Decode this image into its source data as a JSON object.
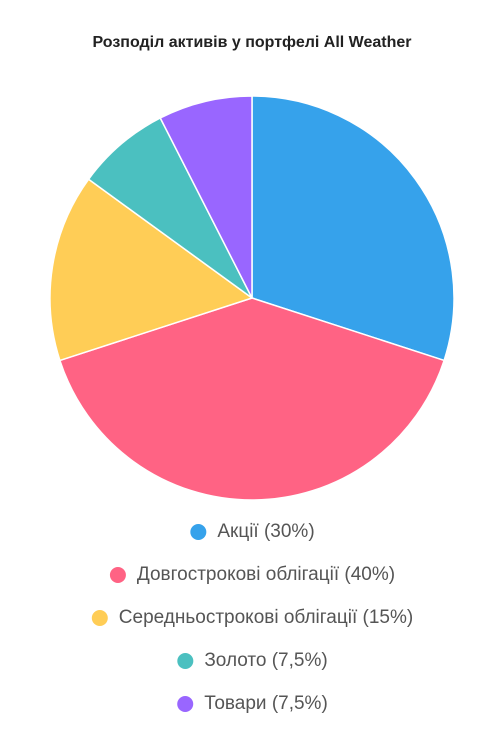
{
  "chart_data": {
    "type": "pie",
    "title": "Розподіл активів у портфелі All Weather",
    "categories": [
      "Акції (30%)",
      "Довгострокові облігації (40%)",
      "Середньострокові облігації (15%)",
      "Золото (7,5%)",
      "Товари (7,5%)"
    ],
    "values": [
      30,
      40,
      15,
      7.5,
      7.5
    ],
    "colors": [
      "#36a2eb",
      "#ff6384",
      "#ffcd56",
      "#4bc0c0",
      "#9966ff"
    ]
  }
}
